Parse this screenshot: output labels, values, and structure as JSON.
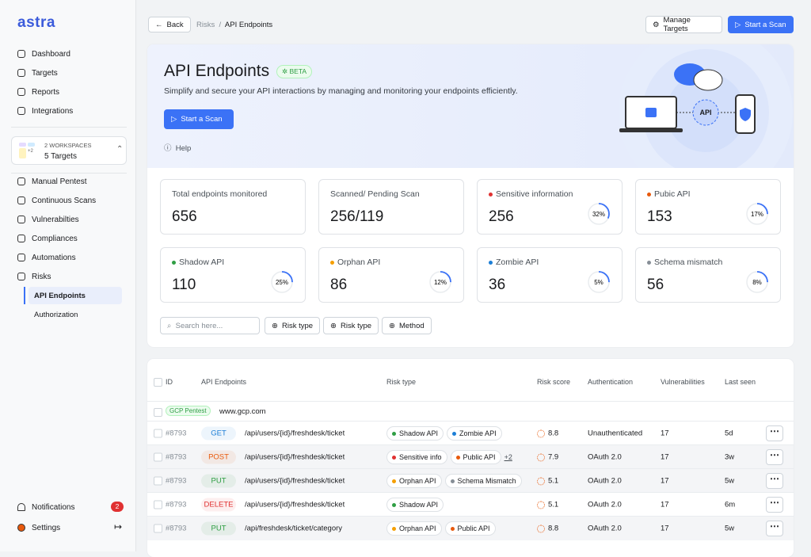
{
  "sidebar": {
    "logo": "astra",
    "nav": [
      "Dashboard",
      "Targets",
      "Reports",
      "Integrations"
    ],
    "workspace": {
      "count": "2 WORKSPACES",
      "targets": "5 Targets",
      "extra": "+2"
    },
    "nav2": [
      "Manual Pentest",
      "Continuous Scans",
      "Vulnerabilties",
      "Compliances",
      "Automations",
      "Risks"
    ],
    "subnav": [
      "API Endpoints",
      "Authorization"
    ],
    "footer": {
      "notifications": "Notifications",
      "badge": "2",
      "settings": "Settings"
    }
  },
  "topbar": {
    "back": "Back",
    "breadcrumb": [
      "Risks",
      "API Endpoints"
    ],
    "manage": "Manage Targets",
    "start": "Start a Scan"
  },
  "hero": {
    "title": "API Endpoints",
    "badge": "BETA",
    "description": "Simplify and secure your API interactions by managing and monitoring your endpoints efficiently.",
    "button": "Start a Scan",
    "help": "Help",
    "illustration_label": "API"
  },
  "stats": [
    {
      "label": "Total endpoints monitored",
      "value": "656"
    },
    {
      "label": "Scanned/ Pending Scan",
      "value": "256/119"
    },
    {
      "label": "Sensitive information",
      "value": "256",
      "percent": "32%",
      "dot": "#e03131"
    },
    {
      "label": "Pubic API",
      "value": "153",
      "percent": "17%",
      "dot": "#e8590c"
    },
    {
      "label": "Shadow API",
      "value": "110",
      "percent": "25%",
      "dot": "#2f9e44"
    },
    {
      "label": "Orphan API",
      "value": "86",
      "percent": "12%",
      "dot": "#f59f00"
    },
    {
      "label": "Zombie API",
      "value": "36",
      "percent": "5%",
      "dot": "#1c7ed6"
    },
    {
      "label": "Schema mismatch",
      "value": "56",
      "percent": "8%",
      "dot": "#868e96"
    }
  ],
  "filters": {
    "search": "Search here...",
    "buttons": [
      "Risk type",
      "Risk type",
      "Method"
    ]
  },
  "table": {
    "columns": [
      "ID",
      "API Endpoints",
      "Risk type",
      "Risk score",
      "Authentication",
      "Vulnerabilities",
      "Last seen"
    ],
    "group": {
      "tag": "GCP Pentest",
      "host": "www.gcp.com"
    },
    "rows": [
      {
        "id": "#8793",
        "method": "GET",
        "method_color": "#1c7ed6",
        "path": "/api/users/{id}/freshdesk/ticket",
        "risks": [
          {
            "name": "Shadow API",
            "color": "#2f9e44"
          },
          {
            "name": "Zombie API",
            "color": "#1c7ed6"
          }
        ],
        "score": "8.8",
        "auth": "Unauthenticated",
        "vulns": "17",
        "last_seen": "5d"
      },
      {
        "id": "#8793",
        "method": "POST",
        "method_color": "#e8590c",
        "path": "/api/users/{id}/freshdesk/ticket",
        "risks": [
          {
            "name": "Sensitive info",
            "color": "#e03131"
          },
          {
            "name": "Public API",
            "color": "#e8590c"
          }
        ],
        "more": "+2",
        "score": "7.9",
        "auth": "OAuth 2.0",
        "vulns": "17",
        "last_seen": "3w"
      },
      {
        "id": "#8793",
        "method": "PUT",
        "method_color": "#2f9e44",
        "path": "/api/users/{id}/freshdesk/ticket",
        "risks": [
          {
            "name": "Orphan API",
            "color": "#f59f00"
          },
          {
            "name": "Schema Mismatch",
            "color": "#868e96"
          }
        ],
        "score": "5.1",
        "auth": "OAuth 2.0",
        "vulns": "17",
        "last_seen": "5w"
      },
      {
        "id": "#8793",
        "method": "DELETE",
        "method_color": "#e03131",
        "path": "/api/users/{id}/freshdesk/ticket",
        "risks": [
          {
            "name": "Shadow API",
            "color": "#2f9e44"
          }
        ],
        "score": "5.1",
        "auth": "OAuth 2.0",
        "vulns": "17",
        "last_seen": "6m"
      },
      {
        "id": "#8793",
        "method": "PUT",
        "method_color": "#2f9e44",
        "path": "/api/freshdesk/ticket/category",
        "risks": [
          {
            "name": "Orphan API",
            "color": "#f59f00"
          },
          {
            "name": "Public API",
            "color": "#e8590c"
          }
        ],
        "score": "8.8",
        "auth": "OAuth 2.0",
        "vulns": "17",
        "last_seen": "5w"
      }
    ]
  }
}
